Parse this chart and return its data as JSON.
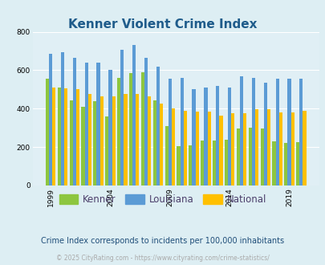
{
  "title": "Kenner Violent Crime Index",
  "subtitle": "Crime Index corresponds to incidents per 100,000 inhabitants",
  "footer": "© 2025 CityRating.com - https://www.cityrating.com/crime-statistics/",
  "years": [
    1999,
    2000,
    2001,
    2002,
    2003,
    2004,
    2005,
    2006,
    2007,
    2008,
    2009,
    2010,
    2011,
    2012,
    2013,
    2014,
    2015,
    2016,
    2017,
    2018,
    2019,
    2020
  ],
  "kenner": [
    555,
    510,
    445,
    410,
    440,
    360,
    560,
    585,
    590,
    445,
    310,
    205,
    210,
    235,
    235,
    240,
    295,
    300,
    295,
    230,
    220,
    225
  ],
  "louisiana": [
    685,
    695,
    665,
    640,
    640,
    600,
    705,
    730,
    665,
    620,
    555,
    560,
    500,
    510,
    520,
    510,
    570,
    560,
    535,
    555,
    555,
    555
  ],
  "national": [
    510,
    505,
    500,
    475,
    465,
    465,
    475,
    475,
    465,
    425,
    400,
    390,
    385,
    385,
    365,
    375,
    375,
    395,
    395,
    380,
    380,
    390
  ],
  "ylim": [
    0,
    800
  ],
  "yticks": [
    0,
    200,
    400,
    600,
    800
  ],
  "xtick_years": [
    1999,
    2004,
    2009,
    2014,
    2019
  ],
  "bar_colors": {
    "kenner": "#8dc63f",
    "louisiana": "#5b9bd5",
    "national": "#ffc000"
  },
  "bg_color": "#ddeef3",
  "plot_bg": "#e0eff5",
  "title_color": "#1f5c8b",
  "subtitle_color": "#1f4e79",
  "footer_color": "#aaaaaa",
  "legend_text_color": "#4b3f6b",
  "legend_labels": [
    "Kenner",
    "Louisiana",
    "National"
  ]
}
